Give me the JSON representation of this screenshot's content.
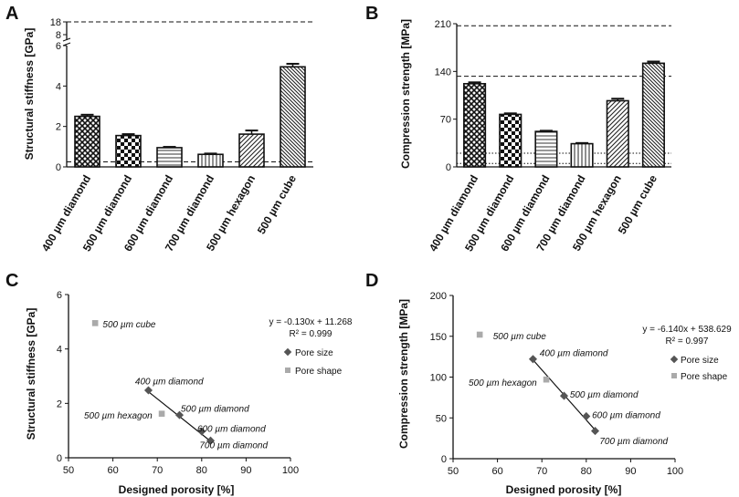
{
  "chart_data": [
    {
      "panel": "A",
      "type": "bar",
      "ylabel": "Structural stiffness [GPa]",
      "xlabel": "",
      "categories": [
        "400 µm diamond",
        "500 µm diamond",
        "600 µm diamond",
        "700 µm diamond",
        "500 µm hexagon",
        "500 µm cube"
      ],
      "values": [
        2.5,
        1.55,
        0.95,
        0.62,
        1.62,
        4.95
      ],
      "errors": [
        0.08,
        0.07,
        0.04,
        0.04,
        0.18,
        0.15
      ],
      "ylim": [
        0,
        6
      ],
      "yticks": [
        "0",
        "2",
        "4",
        "6"
      ],
      "ybreak_ticks": [
        "8",
        "18"
      ],
      "reference_lines": [
        {
          "value": 18,
          "style": "dashed"
        },
        {
          "value": 0.25,
          "style": "dashed"
        }
      ]
    },
    {
      "panel": "B",
      "type": "bar",
      "ylabel": "Compression strength [MPa]",
      "xlabel": "",
      "categories": [
        "400 µm diamond",
        "500 µm diamond",
        "600 µm diamond",
        "700 µm diamond",
        "500 µm hexagon",
        "500 µm cube"
      ],
      "values": [
        122,
        77,
        52,
        34,
        97,
        152
      ],
      "errors": [
        2,
        1.5,
        1,
        1,
        3,
        2.5
      ],
      "ylim": [
        0,
        210
      ],
      "yticks": [
        "0",
        "70",
        "140",
        "210"
      ],
      "reference_lines": [
        {
          "value": 207,
          "style": "dashed"
        },
        {
          "value": 133,
          "style": "dashed"
        },
        {
          "value": 20,
          "style": "dotted"
        },
        {
          "value": 5,
          "style": "dotted"
        }
      ]
    },
    {
      "panel": "C",
      "type": "scatter",
      "xlabel": "Designed porosity [%]",
      "ylabel": "Structural stiffness [GPa]",
      "xlim": [
        50,
        100
      ],
      "ylim": [
        0,
        6
      ],
      "xticks": [
        "50",
        "60",
        "70",
        "80",
        "90",
        "100"
      ],
      "yticks": [
        "0",
        "2",
        "4",
        "6"
      ],
      "series": [
        {
          "name": "Pore size",
          "marker": "diamond",
          "color": "#555555",
          "points": [
            {
              "x": 68,
              "y": 2.48
            },
            {
              "x": 75,
              "y": 1.57
            },
            {
              "x": 80,
              "y": 0.97
            },
            {
              "x": 82,
              "y": 0.63
            }
          ]
        },
        {
          "name": "Pore shape",
          "marker": "square",
          "color": "#aaaaaa",
          "points": [
            {
              "x": 56,
              "y": 4.95
            },
            {
              "x": 71,
              "y": 1.62
            }
          ]
        }
      ],
      "trendline": {
        "x": [
          68,
          82
        ],
        "slope": -0.13,
        "intercept": 11.268
      },
      "equation": "y = -0.130x + 11.268",
      "r2": "R² = 0.999",
      "annotations": [
        {
          "text": "500 µm cube",
          "x": 57.7,
          "y": 4.9
        },
        {
          "text": "400 µm  diamond",
          "x": 65,
          "y": 2.8
        },
        {
          "text": "500  µm diamond",
          "x": 75.3,
          "y": 1.8
        },
        {
          "text": "500 µm hexagon",
          "x": 53.5,
          "y": 1.55
        },
        {
          "text": "600  µm diamond",
          "x": 79,
          "y": 1.05
        },
        {
          "text": "700 µm  diamond",
          "x": 79.5,
          "y": 0.45
        }
      ]
    },
    {
      "panel": "D",
      "type": "scatter",
      "xlabel": "Designed porosity [%]",
      "ylabel": "Compression strength [MPa]",
      "xlim": [
        50,
        100
      ],
      "ylim": [
        0,
        200
      ],
      "xticks": [
        "50",
        "60",
        "70",
        "80",
        "90",
        "100"
      ],
      "yticks": [
        "0",
        "50",
        "100",
        "150",
        "200"
      ],
      "series": [
        {
          "name": "Pore size",
          "marker": "diamond",
          "color": "#555555",
          "points": [
            {
              "x": 68,
              "y": 122
            },
            {
              "x": 75,
              "y": 77
            },
            {
              "x": 80,
              "y": 52
            },
            {
              "x": 82,
              "y": 34
            }
          ]
        },
        {
          "name": "Pore shape",
          "marker": "square",
          "color": "#aaaaaa",
          "points": [
            {
              "x": 56,
              "y": 152
            },
            {
              "x": 71,
              "y": 97
            }
          ]
        }
      ],
      "trendline": {
        "x": [
          68,
          82
        ],
        "slope": -6.14,
        "intercept": 538.629
      },
      "equation": "y = -6.140x + 538.629",
      "r2": "R² = 0.997",
      "annotations": [
        {
          "text": "500 µm cube",
          "x": 59,
          "y": 150
        },
        {
          "text": "400 µm diamond",
          "x": 69.5,
          "y": 129
        },
        {
          "text": "500 µm hexagon",
          "x": 53.5,
          "y": 93
        },
        {
          "text": "500 µm diamond",
          "x": 76.3,
          "y": 78
        },
        {
          "text": "600 µm diamond",
          "x": 81.3,
          "y": 53
        },
        {
          "text": "700 µm diamond",
          "x": 83,
          "y": 21
        }
      ]
    }
  ],
  "panel_labels": [
    "A",
    "B",
    "C",
    "D"
  ]
}
